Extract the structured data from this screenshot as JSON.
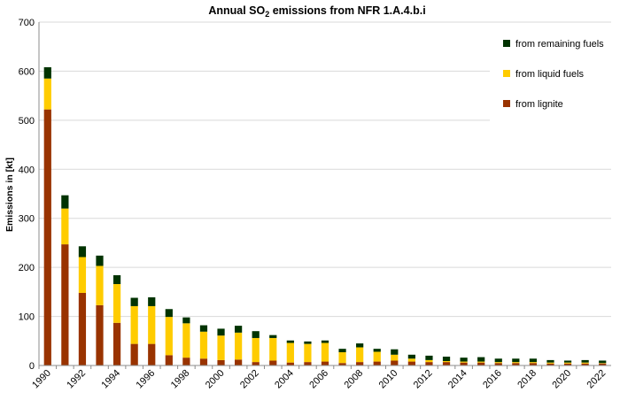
{
  "chart_data": {
    "type": "bar",
    "stacked": true,
    "title_prefix": "Annual SO",
    "title_sub": "2",
    "title_suffix": " emissions from NFR 1.A.4.b.i",
    "ylabel": "Emissions in [kt]",
    "xlabel": "",
    "ylim": [
      0,
      700
    ],
    "yticks": [
      0,
      100,
      200,
      300,
      400,
      500,
      600,
      700
    ],
    "grid": true,
    "legend_position": "top-right",
    "categories": [
      "1990",
      "1991",
      "1992",
      "1993",
      "1994",
      "1995",
      "1996",
      "1997",
      "1998",
      "1999",
      "2000",
      "2001",
      "2002",
      "2003",
      "2004",
      "2005",
      "2006",
      "2007",
      "2008",
      "2009",
      "2010",
      "2011",
      "2012",
      "2013",
      "2014",
      "2015",
      "2016",
      "2017",
      "2018",
      "2019",
      "2020",
      "2021",
      "2022"
    ],
    "xtick_labels": [
      "1990",
      "1992",
      "1994",
      "1996",
      "1998",
      "2000",
      "2002",
      "2004",
      "2006",
      "2008",
      "2010",
      "2012",
      "2014",
      "2016",
      "2018",
      "2020",
      "2022"
    ],
    "series": [
      {
        "name": "from lignite",
        "color": "#993300",
        "values": [
          522,
          247,
          148,
          123,
          87,
          44,
          44,
          21,
          16,
          14,
          11,
          12,
          7,
          10,
          6,
          7,
          8,
          5,
          7,
          8,
          10,
          8,
          7,
          7,
          6,
          6,
          5,
          5,
          5,
          4,
          4,
          4,
          4
        ]
      },
      {
        "name": "from liquid fuels",
        "color": "#ffcc00",
        "values": [
          63,
          73,
          73,
          80,
          79,
          77,
          77,
          78,
          70,
          55,
          50,
          55,
          49,
          46,
          40,
          37,
          38,
          22,
          30,
          20,
          12,
          6,
          4,
          2,
          2,
          2,
          2,
          2,
          2,
          2,
          2,
          2,
          1
        ]
      },
      {
        "name": "from remaining fuels",
        "color": "#003300",
        "values": [
          23,
          27,
          22,
          21,
          18,
          17,
          18,
          16,
          12,
          13,
          14,
          14,
          14,
          6,
          5,
          5,
          5,
          7,
          8,
          6,
          11,
          8,
          9,
          9,
          8,
          9,
          7,
          7,
          7,
          5,
          4,
          5,
          5
        ]
      }
    ]
  }
}
